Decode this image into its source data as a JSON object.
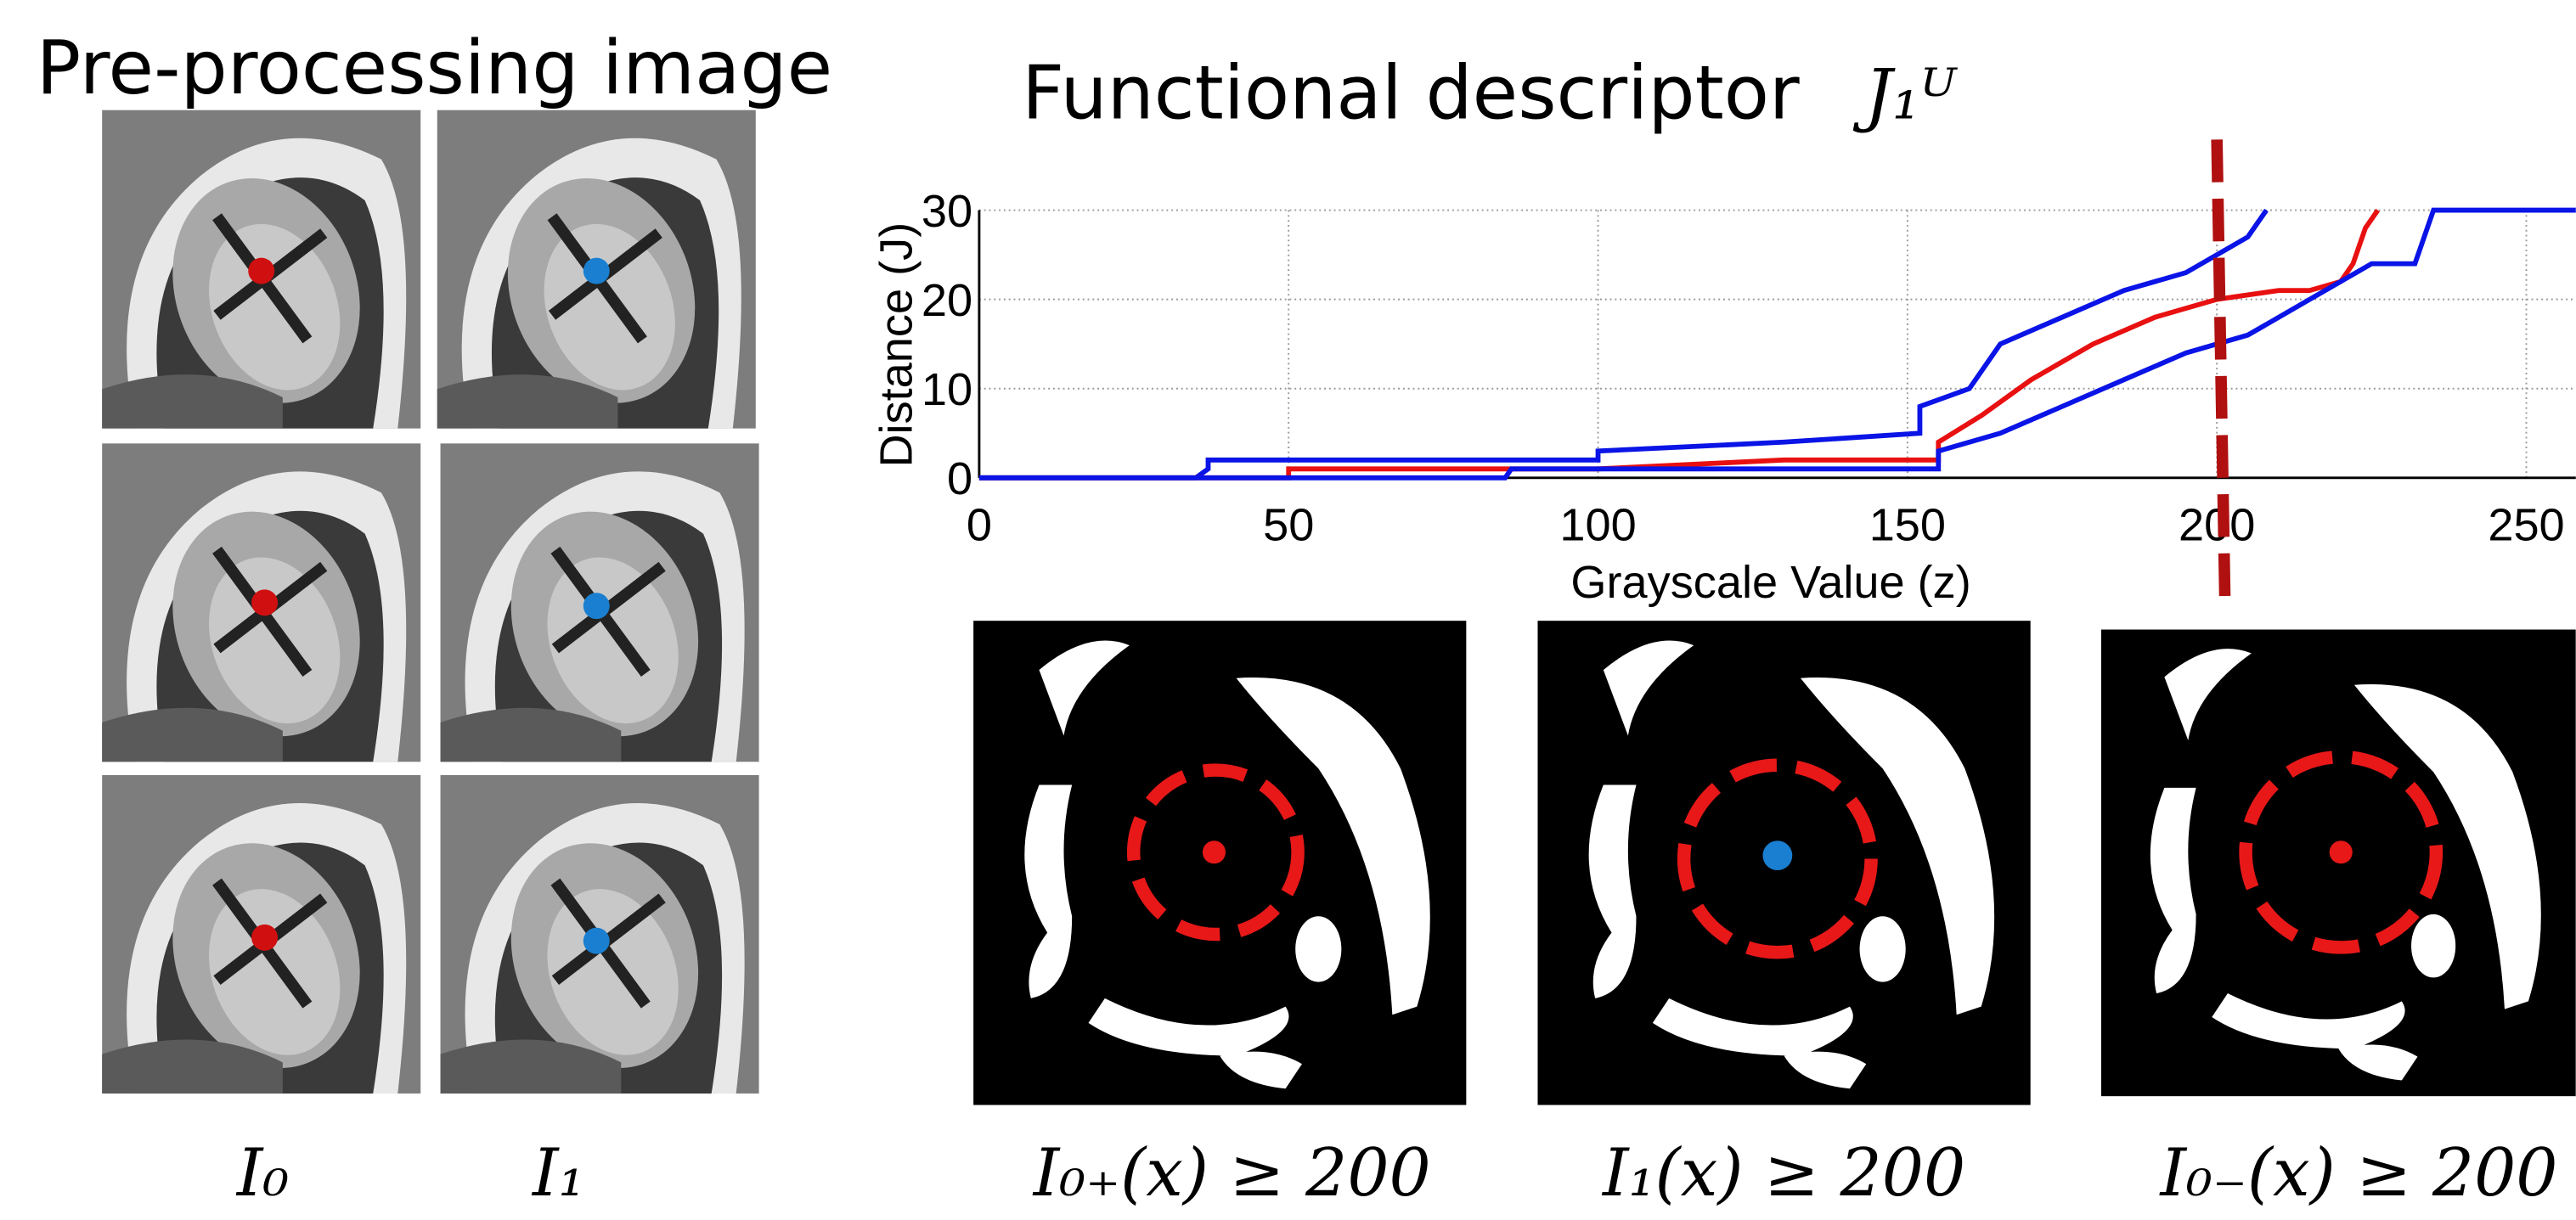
{
  "panel_title": "Pre-processing image",
  "column_labels": [
    "I₀",
    "I₁"
  ],
  "threshold_labels": [
    "I₀₊(x) ≥ 200",
    "I₁(x) ≥ 200",
    "I₀₋(x) ≥ 200"
  ],
  "chart_data": {
    "type": "line",
    "title": "Functional descriptor",
    "title_symbol": "J₁ᵁ",
    "x_label": "Grayscale Value (z)",
    "y_label": "Distance (J)",
    "xlim": [
      0,
      258
    ],
    "ylim": [
      0,
      30
    ],
    "xticks": [
      0,
      50,
      100,
      150,
      200,
      250
    ],
    "yticks": [
      0,
      10,
      20,
      30
    ],
    "grid": true,
    "threshold": 200,
    "threshold_color": "#b01010",
    "series": [
      {
        "color": "#0a14e6",
        "x": [
          0,
          35,
          37,
          37,
          100,
          100,
          130,
          152,
          152,
          160,
          165,
          175,
          185,
          195,
          200,
          205,
          208
        ],
        "values": [
          0,
          0,
          1,
          2,
          2,
          3,
          4,
          5,
          8,
          10,
          15,
          18,
          21,
          23,
          25,
          27,
          30
        ]
      },
      {
        "color": "#e81010",
        "x": [
          0,
          50,
          50,
          100,
          130,
          155,
          155,
          162,
          170,
          180,
          190,
          200,
          210,
          215,
          220,
          222,
          224,
          226
        ],
        "values": [
          0,
          0,
          1,
          1,
          2,
          2,
          4,
          7,
          11,
          15,
          18,
          20,
          21,
          21,
          22,
          24,
          28,
          30
        ]
      },
      {
        "color": "#0a14e6",
        "x": [
          0,
          85,
          86,
          130,
          155,
          155,
          165,
          175,
          185,
          195,
          205,
          215,
          225,
          232,
          235,
          258
        ],
        "values": [
          0,
          0,
          1,
          1,
          1,
          3,
          5,
          8,
          11,
          14,
          16,
          20,
          24,
          24,
          30,
          30
        ]
      }
    ]
  }
}
